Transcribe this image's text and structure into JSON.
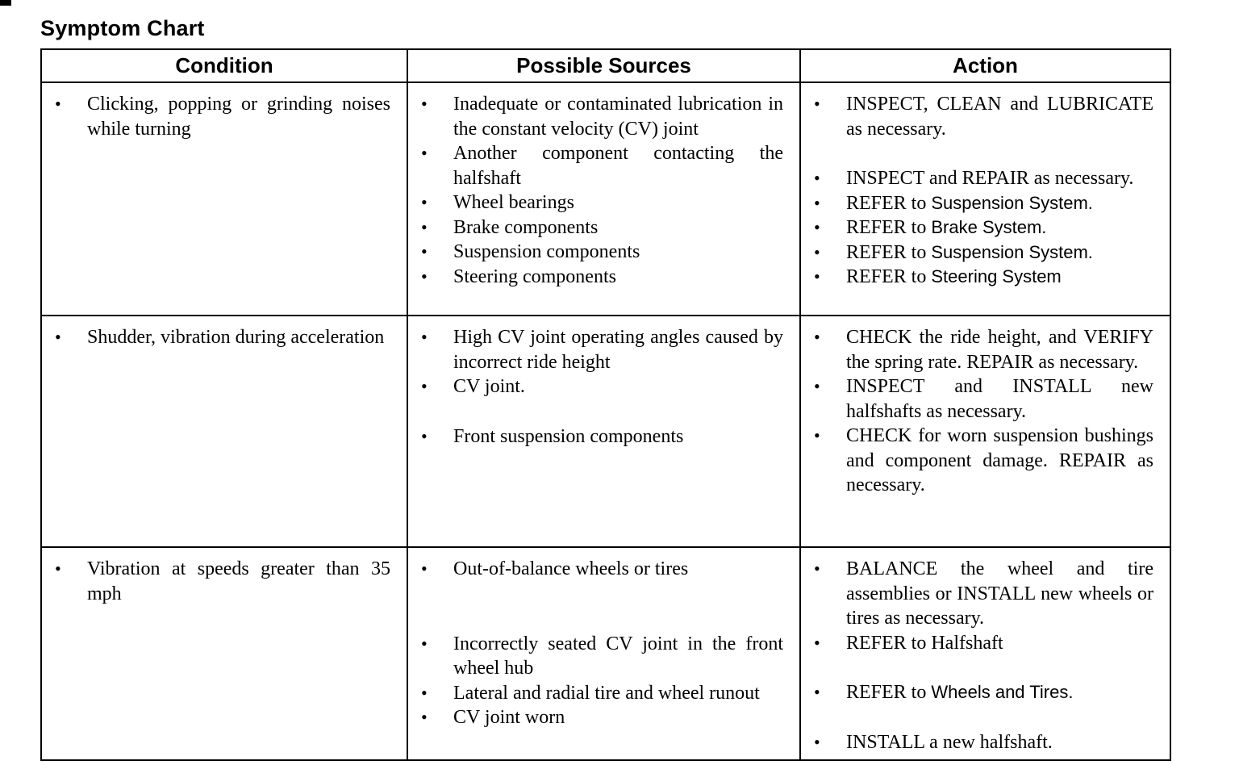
{
  "page": {
    "title": "Symptom Chart"
  },
  "table": {
    "bullet_glyph": "•",
    "headers": [
      "Condition",
      "Possible Sources",
      "Action"
    ],
    "rows": [
      {
        "condition": [
          {
            "gap": 0,
            "parts": [
              {
                "text": "Clicking, popping or grinding noises while turning"
              }
            ]
          }
        ],
        "sources": [
          {
            "gap": 0,
            "parts": [
              {
                "text": "Inadequate or contaminated lubrication in the constant velocity (CV) joint"
              }
            ]
          },
          {
            "gap": 0,
            "parts": [
              {
                "text": "Another component contacting the halfshaft"
              }
            ]
          },
          {
            "gap": 0,
            "parts": [
              {
                "text": "Wheel bearings"
              }
            ]
          },
          {
            "gap": 0,
            "parts": [
              {
                "text": "Brake components"
              }
            ]
          },
          {
            "gap": 0,
            "parts": [
              {
                "text": "Suspension components"
              }
            ]
          },
          {
            "gap": 0,
            "parts": [
              {
                "text": "Steering components"
              }
            ]
          }
        ],
        "action": [
          {
            "gap": 0,
            "parts": [
              {
                "text": "INSPECT, CLEAN and LUBRICATE as necessary."
              }
            ]
          },
          {
            "gap": 1,
            "parts": [
              {
                "text": "INSPECT and REPAIR as necessary."
              }
            ]
          },
          {
            "gap": 0,
            "parts": [
              {
                "text": "REFER to "
              },
              {
                "text": "Suspension System.",
                "style": "sans"
              }
            ]
          },
          {
            "gap": 0,
            "parts": [
              {
                "text": "REFER to "
              },
              {
                "text": "Brake System.",
                "style": "sans"
              }
            ]
          },
          {
            "gap": 0,
            "parts": [
              {
                "text": "REFER to "
              },
              {
                "text": "Suspension System.",
                "style": "sans"
              }
            ]
          },
          {
            "gap": 0,
            "parts": [
              {
                "text": "REFER to "
              },
              {
                "text": "Steering System",
                "style": "sans"
              }
            ]
          }
        ]
      },
      {
        "condition": [
          {
            "gap": 0,
            "parts": [
              {
                "text": "Shudder, vibration during acceleration"
              }
            ]
          }
        ],
        "sources": [
          {
            "gap": 0,
            "parts": [
              {
                "text": "High CV joint operating angles caused by incorrect ride height"
              }
            ]
          },
          {
            "gap": 0,
            "parts": [
              {
                "text": "CV joint."
              }
            ]
          },
          {
            "gap": 1,
            "parts": [
              {
                "text": "Front suspension components"
              }
            ]
          }
        ],
        "action": [
          {
            "gap": 0,
            "parts": [
              {
                "text": "CHECK the ride height, and VERIFY the spring rate. REPAIR as necessary."
              }
            ]
          },
          {
            "gap": 0,
            "parts": [
              {
                "text": "INSPECT and INSTALL new halfshafts as necessary."
              }
            ]
          },
          {
            "gap": 0,
            "parts": [
              {
                "text": "CHECK for worn suspension bushings and component damage. REPAIR as necessary."
              }
            ]
          }
        ]
      },
      {
        "condition": [
          {
            "gap": 0,
            "parts": [
              {
                "text": "Vibration at speeds greater than 35 mph"
              }
            ]
          }
        ],
        "sources": [
          {
            "gap": 0,
            "parts": [
              {
                "text": "Out-of-balance wheels or tires"
              }
            ]
          },
          {
            "gap": 2,
            "parts": [
              {
                "text": "Incorrectly seated CV joint in the front wheel hub"
              }
            ]
          },
          {
            "gap": 0,
            "parts": [
              {
                "text": "Lateral and radial tire and wheel runout"
              }
            ]
          },
          {
            "gap": 0,
            "parts": [
              {
                "text": "CV joint worn"
              }
            ]
          }
        ],
        "action": [
          {
            "gap": 0,
            "parts": [
              {
                "text": "BALANCE the wheel and tire assemblies or INSTALL new wheels or tires as necessary."
              }
            ]
          },
          {
            "gap": 0,
            "parts": [
              {
                "text": "REFER to Halfshaft"
              }
            ]
          },
          {
            "gap": 1,
            "parts": [
              {
                "text": "REFER to "
              },
              {
                "text": "Wheels and Tires.",
                "style": "sans"
              }
            ]
          },
          {
            "gap": 1,
            "parts": [
              {
                "text": "INSTALL a new halfshaft."
              }
            ]
          }
        ]
      }
    ]
  }
}
